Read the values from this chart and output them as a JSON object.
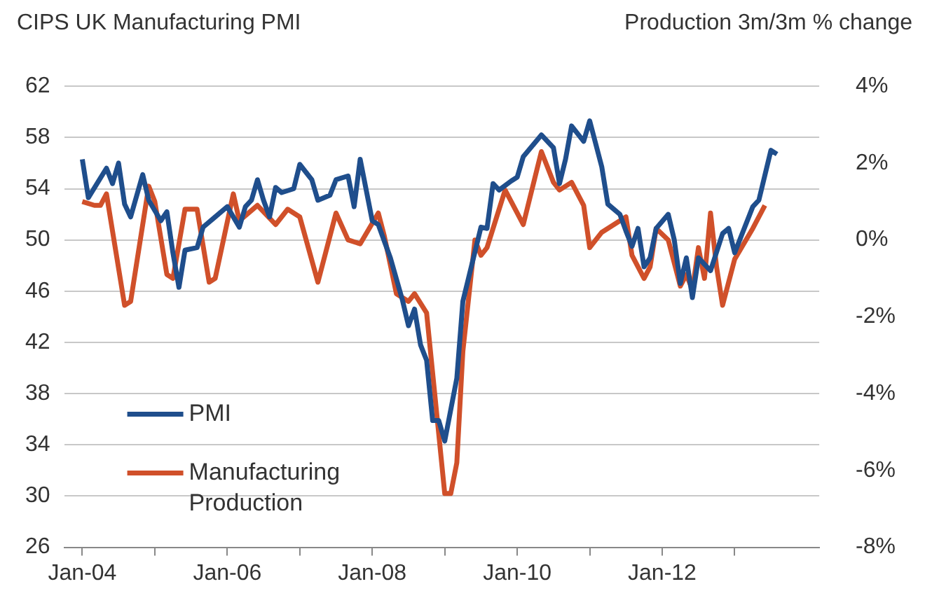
{
  "chart_data": {
    "type": "line",
    "ylabel": "CIPS UK Manufacturing PMI",
    "y2label": "Production 3m/3m % change",
    "xlim": [
      "2003-10",
      "2014-03"
    ],
    "xticks": [
      {
        "value": "2004-01",
        "label": "Jan-04"
      },
      {
        "value": "2005-01",
        "label": null
      },
      {
        "value": "2006-01",
        "label": "Jan-06"
      },
      {
        "value": "2007-01",
        "label": null
      },
      {
        "value": "2008-01",
        "label": "Jan-08"
      },
      {
        "value": "2009-01",
        "label": null
      },
      {
        "value": "2010-01",
        "label": "Jan-10"
      },
      {
        "value": "2011-01",
        "label": null
      },
      {
        "value": "2012-01",
        "label": "Jan-12"
      },
      {
        "value": "2013-01",
        "label": null
      }
    ],
    "ylim": [
      26,
      62
    ],
    "yticks": [
      26,
      30,
      34,
      38,
      42,
      46,
      50,
      54,
      58,
      62
    ],
    "y2lim": [
      -8,
      4
    ],
    "y2ticks": [
      {
        "value": -8,
        "label": "-8%"
      },
      {
        "value": -6,
        "label": "-6%"
      },
      {
        "value": -4,
        "label": "-4%"
      },
      {
        "value": -2,
        "label": "-2%"
      },
      {
        "value": 0,
        "label": "0%"
      },
      {
        "value": 2,
        "label": "2%"
      },
      {
        "value": 4,
        "label": "4%"
      }
    ],
    "grid": "y",
    "legend": "bottom left",
    "line_style": "solid",
    "marker": "none",
    "series": [
      {
        "name": "PMI",
        "color": "#1f4e8c",
        "x": [
          "2004-01",
          "2004-02",
          "2004-05",
          "2004-06",
          "2004-07",
          "2004-08",
          "2004-09",
          "2004-11",
          "2004-12",
          "2005-02",
          "2005-03",
          "2005-04",
          "2005-05",
          "2005-06",
          "2005-08",
          "2005-09",
          "2005-11",
          "2006-01",
          "2006-03",
          "2006-04",
          "2006-05",
          "2006-06",
          "2006-07",
          "2006-08",
          "2006-09",
          "2006-10",
          "2006-12",
          "2007-01",
          "2007-03",
          "2007-04",
          "2007-06",
          "2007-07",
          "2007-09",
          "2007-10",
          "2007-11",
          "2008-01",
          "2008-02",
          "2008-04",
          "2008-06",
          "2008-07",
          "2008-08",
          "2008-09",
          "2008-10",
          "2008-11",
          "2008-12",
          "2009-01",
          "2009-03",
          "2009-04",
          "2009-07",
          "2009-08",
          "2009-09",
          "2009-10",
          "2009-12",
          "2010-01",
          "2010-02",
          "2010-05",
          "2010-07",
          "2010-08",
          "2010-09",
          "2010-10",
          "2010-12",
          "2011-01",
          "2011-03",
          "2011-04",
          "2011-06",
          "2011-07",
          "2011-08",
          "2011-09",
          "2011-10",
          "2011-11",
          "2011-12",
          "2012-02",
          "2012-03",
          "2012-04",
          "2012-05",
          "2012-06",
          "2012-07",
          "2012-09",
          "2012-11",
          "2012-12",
          "2013-01",
          "2013-04",
          "2013-05",
          "2013-07",
          "2013-08"
        ],
        "values": [
          56.3,
          53.3,
          55.6,
          54.4,
          56.0,
          52.8,
          51.8,
          55.1,
          53.1,
          51.5,
          52.2,
          49.0,
          46.3,
          49.2,
          49.4,
          51.0,
          51.8,
          52.6,
          51.0,
          52.6,
          53.1,
          54.7,
          53.1,
          51.8,
          54.1,
          53.7,
          54.0,
          55.9,
          54.7,
          53.1,
          53.5,
          54.7,
          55.0,
          52.6,
          56.3,
          51.5,
          51.2,
          48.6,
          45.3,
          43.3,
          44.6,
          41.8,
          40.6,
          35.9,
          35.9,
          34.3,
          39.2,
          45.2,
          51.0,
          50.9,
          54.4,
          53.9,
          54.6,
          54.9,
          56.5,
          58.2,
          57.2,
          54.4,
          56.3,
          58.9,
          57.7,
          59.3,
          55.7,
          52.8,
          52.0,
          50.7,
          49.5,
          50.9,
          47.9,
          48.6,
          50.9,
          52.0,
          50.0,
          46.6,
          48.6,
          45.5,
          48.6,
          47.6,
          50.5,
          50.9,
          49.0,
          52.6,
          53.1,
          57.0,
          56.7
        ]
      },
      {
        "name": "Manufacturing Production",
        "color": "#d0502a",
        "axis": "y2",
        "x": [
          "2004-01",
          "2004-03",
          "2004-04",
          "2004-05",
          "2004-08",
          "2004-09",
          "2004-12",
          "2005-01",
          "2005-03",
          "2005-04",
          "2005-06",
          "2005-08",
          "2005-10",
          "2005-11",
          "2006-02",
          "2006-03",
          "2006-06",
          "2006-09",
          "2006-11",
          "2007-01",
          "2007-04",
          "2007-07",
          "2007-09",
          "2007-11",
          "2008-02",
          "2008-03",
          "2008-05",
          "2008-07",
          "2008-08",
          "2008-10",
          "2009-01",
          "2009-02",
          "2009-03",
          "2009-04",
          "2009-06",
          "2009-07",
          "2009-08",
          "2009-11",
          "2010-02",
          "2010-05",
          "2010-07",
          "2010-08",
          "2010-10",
          "2010-12",
          "2011-01",
          "2011-03",
          "2011-04",
          "2011-07",
          "2011-08",
          "2011-10",
          "2011-11",
          "2011-12",
          "2012-02",
          "2012-04",
          "2012-05",
          "2012-06",
          "2012-07",
          "2012-08",
          "2012-09",
          "2012-10",
          "2012-11",
          "2013-01",
          "2013-04",
          "2013-06"
        ],
        "values": [
          1.0,
          0.9,
          0.9,
          1.2,
          -1.7,
          -1.6,
          1.4,
          1.0,
          -0.9,
          -1.0,
          0.8,
          0.8,
          -1.1,
          -1.0,
          1.2,
          0.5,
          0.9,
          0.4,
          0.8,
          0.6,
          -1.1,
          0.7,
          0.0,
          -0.1,
          0.7,
          0.1,
          -1.4,
          -1.6,
          -1.4,
          -1.9,
          -6.6,
          -6.6,
          -5.8,
          -2.9,
          0.0,
          -0.4,
          -0.2,
          1.3,
          0.4,
          2.3,
          1.5,
          1.3,
          1.5,
          0.9,
          -0.2,
          0.2,
          0.3,
          0.6,
          -0.4,
          -1.0,
          -0.7,
          0.3,
          0.0,
          -1.2,
          -0.9,
          -1.3,
          -0.2,
          -1.0,
          0.7,
          -0.7,
          -1.7,
          -0.5,
          0.3,
          0.9
        ]
      }
    ]
  }
}
